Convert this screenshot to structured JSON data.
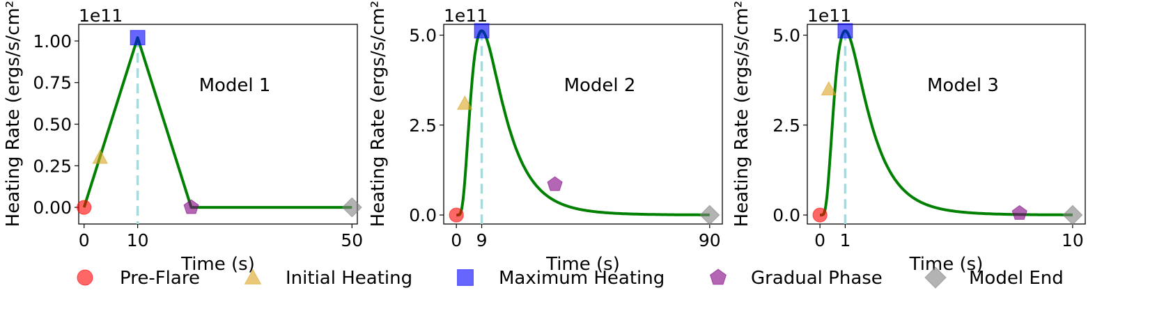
{
  "chart_data": [
    {
      "type": "line",
      "annotation": "Model 1",
      "offset_text": "1e11",
      "xlabel": "Time (s)",
      "ylabel": "Heating Rate (ergs/s/cm²)",
      "xlim": [
        -1,
        51
      ],
      "ylim": [
        -0.1,
        1.1
      ],
      "xticks": [
        {
          "v": 0,
          "label": "0"
        },
        {
          "v": 10,
          "label": "10"
        },
        {
          "v": 50,
          "label": "50"
        }
      ],
      "yticks": [
        {
          "v": 0,
          "label": "0.00"
        },
        {
          "v": 0.25,
          "label": "0.25"
        },
        {
          "v": 0.5,
          "label": "0.50"
        },
        {
          "v": 0.75,
          "label": "0.75"
        },
        {
          "v": 1.0,
          "label": "1.00"
        }
      ],
      "curve": {
        "kind": "piecewise",
        "x": [
          0,
          10,
          20,
          50
        ],
        "y": [
          0,
          1.02,
          0,
          0
        ],
        "color": "#008000"
      },
      "vline_x": 10,
      "markers": [
        {
          "phase": "Pre-Flare",
          "x": 0,
          "y": 0
        },
        {
          "phase": "Initial Heating",
          "x": 3,
          "y": 0.3
        },
        {
          "phase": "Maximum Heating",
          "x": 10,
          "y": 1.02
        },
        {
          "phase": "Gradual Phase",
          "x": 20,
          "y": 0
        },
        {
          "phase": "Model End",
          "x": 50,
          "y": 0
        }
      ]
    },
    {
      "type": "line",
      "annotation": "Model 2",
      "offset_text": "1e11",
      "xlabel": "Time (s)",
      "ylabel": "Heating Rate (ergs/s/cm²)",
      "xlim": [
        -4.5,
        94.5
      ],
      "ylim": [
        -0.25,
        5.3
      ],
      "xticks": [
        {
          "v": 0,
          "label": "0"
        },
        {
          "v": 9,
          "label": "9"
        },
        {
          "v": 90,
          "label": "90"
        }
      ],
      "yticks": [
        {
          "v": 0,
          "label": "0.0"
        },
        {
          "v": 2.5,
          "label": "2.5"
        },
        {
          "v": 5.0,
          "label": "5.0"
        }
      ],
      "curve": {
        "kind": "lognormal",
        "peak_x": 9,
        "peak_y": 5.12,
        "sigma": 0.6,
        "x_end": 90,
        "color": "#008000"
      },
      "vline_x": 9,
      "markers": [
        {
          "phase": "Pre-Flare",
          "x": 0,
          "y": 0
        },
        {
          "phase": "Initial Heating",
          "x": 3,
          "y": 3.1
        },
        {
          "phase": "Maximum Heating",
          "x": 9,
          "y": 5.12
        },
        {
          "phase": "Gradual Phase",
          "x": 35,
          "y": 0.85
        },
        {
          "phase": "Model End",
          "x": 90,
          "y": 0
        }
      ]
    },
    {
      "type": "line",
      "annotation": "Model 3",
      "offset_text": "1e11",
      "xlabel": "Time (s)",
      "ylabel": "Heating Rate (ergs/s/cm²)",
      "xlim": [
        -0.5,
        10.5
      ],
      "ylim": [
        -0.25,
        5.3
      ],
      "xticks": [
        {
          "v": 0,
          "label": "0"
        },
        {
          "v": 1,
          "label": "1"
        },
        {
          "v": 10,
          "label": "10"
        }
      ],
      "yticks": [
        {
          "v": 0,
          "label": "0.0"
        },
        {
          "v": 2.5,
          "label": "2.5"
        },
        {
          "v": 5.0,
          "label": "5.0"
        }
      ],
      "curve": {
        "kind": "lognormal",
        "peak_x": 1,
        "peak_y": 5.12,
        "sigma": 0.6,
        "x_end": 10,
        "color": "#008000"
      },
      "vline_x": 1,
      "markers": [
        {
          "phase": "Pre-Flare",
          "x": 0,
          "y": 0
        },
        {
          "phase": "Initial Heating",
          "x": 0.35,
          "y": 3.5
        },
        {
          "phase": "Maximum Heating",
          "x": 1,
          "y": 5.12
        },
        {
          "phase": "Gradual Phase",
          "x": 7.9,
          "y": 0.05
        },
        {
          "phase": "Model End",
          "x": 10,
          "y": 0
        }
      ]
    }
  ],
  "legend": {
    "placement": "bottom",
    "items": [
      {
        "label": "Pre-Flare",
        "marker": "circle",
        "color": "#ff0000"
      },
      {
        "label": "Initial Heating",
        "marker": "triangle",
        "color": "#daa520"
      },
      {
        "label": "Maximum Heating",
        "marker": "square",
        "color": "#0000ff"
      },
      {
        "label": "Gradual Phase",
        "marker": "pentagon",
        "color": "#800080"
      },
      {
        "label": "Model End",
        "marker": "diamond",
        "color": "#808080"
      }
    ]
  },
  "colors": {
    "curve": "#008000",
    "vline": "#a8dadc"
  }
}
